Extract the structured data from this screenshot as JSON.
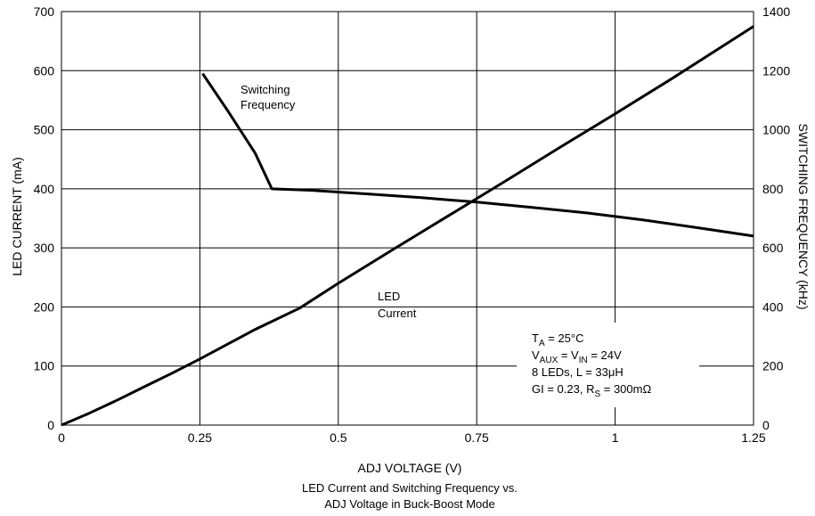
{
  "chart_data": {
    "type": "line",
    "xlabel": "ADJ VOLTAGE (V)",
    "ylabel": "LED CURRENT (mA)",
    "y2label": "SWITCHING FREQUENCY (kHz)",
    "caption_line1": "LED Current and Switching Frequency vs.",
    "caption_line2": "ADJ Voltage in Buck-Boost Mode",
    "xlim": [
      0,
      1.25
    ],
    "ylim": [
      0,
      700
    ],
    "y2lim": [
      0,
      1400
    ],
    "grid": true,
    "x_ticks": [
      "0",
      "0.25",
      "0.5",
      "0.75",
      "1",
      "1.25"
    ],
    "y_ticks": [
      "0",
      "100",
      "200",
      "300",
      "400",
      "500",
      "600",
      "700"
    ],
    "y2_ticks": [
      "0",
      "200",
      "400",
      "600",
      "800",
      "1000",
      "1200",
      "1400"
    ],
    "series": [
      {
        "name": "LED Current",
        "axis": "left",
        "x": [
          0,
          0.05,
          0.1,
          0.15,
          0.2,
          0.25,
          0.3,
          0.35,
          0.43,
          0.5,
          0.6,
          0.7,
          0.8,
          0.9,
          1.0,
          1.1,
          1.2,
          1.25
        ],
        "y": [
          0,
          20,
          42,
          65,
          88,
          112,
          137,
          162,
          198,
          240,
          298,
          355,
          412,
          470,
          527,
          585,
          645,
          675
        ]
      },
      {
        "name": "Switching Frequency",
        "axis": "right",
        "x": [
          0.255,
          0.3,
          0.35,
          0.38,
          0.45,
          0.55,
          0.65,
          0.75,
          0.85,
          0.95,
          1.05,
          1.15,
          1.25
        ],
        "y": [
          1190,
          1065,
          920,
          800,
          795,
          783,
          770,
          755,
          737,
          718,
          695,
          668,
          640
        ]
      }
    ],
    "annotations": {
      "switching_label_line1": "Switching",
      "switching_label_line2": "Frequency",
      "led_label_line1": "LED",
      "led_label_line2": "Current"
    },
    "conditions": {
      "line1_main": "T",
      "line1_sub": "A",
      "line1_rest": " = 25°C",
      "line2_main": "V",
      "line2_sub": "AUX",
      "line2_mid": " = V",
      "line2_sub2": "IN",
      "line2_rest": " = 24V",
      "line3": "8 LEDs, L = 33μH",
      "line4_main": "GI = 0.23, R",
      "line4_sub": "S",
      "line4_rest": " = 300mΩ"
    },
    "colors": {
      "line": "#000000",
      "grid": "#000000"
    }
  }
}
